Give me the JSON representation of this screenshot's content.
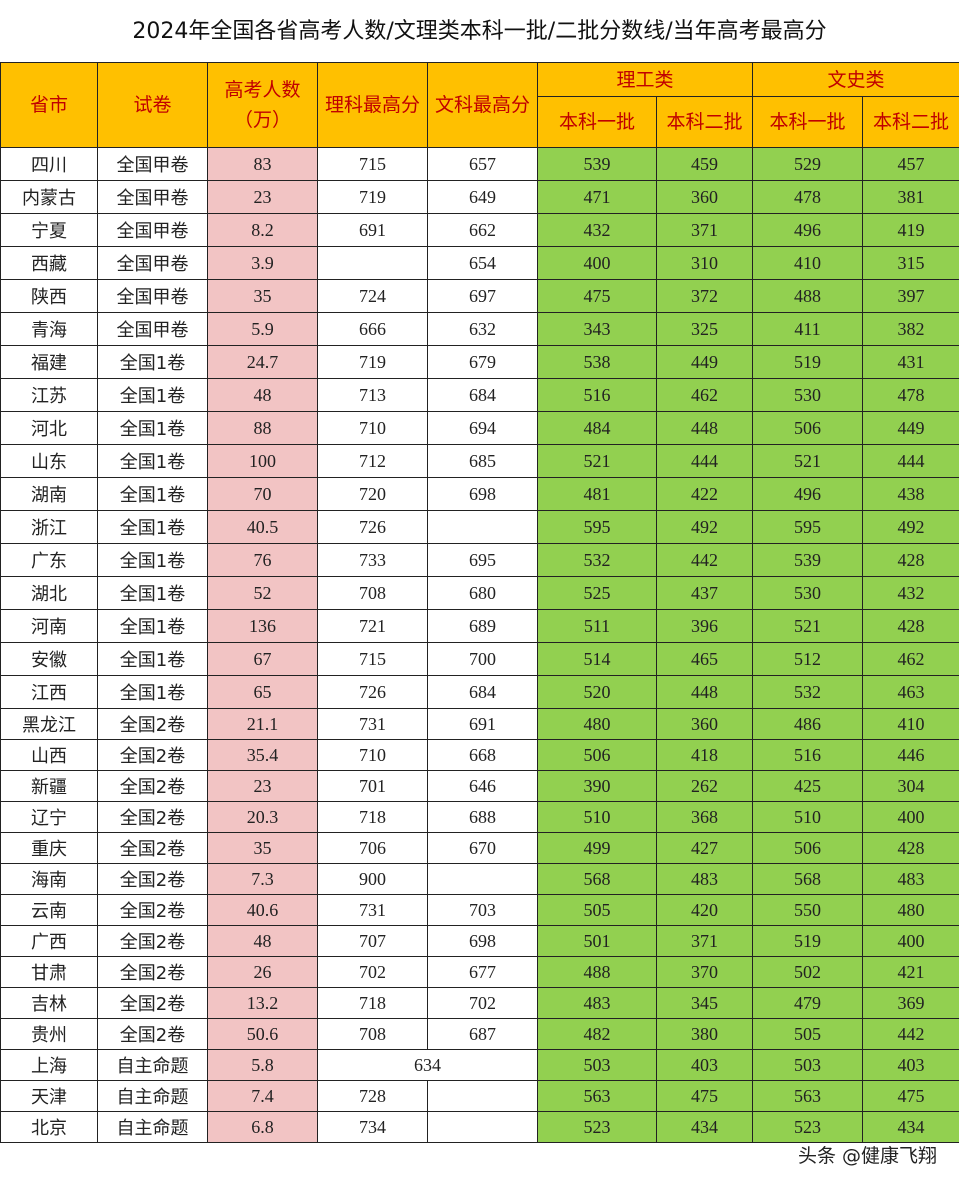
{
  "title": "2024年全国各省高考人数/文理类本科一批/二批分数线/当年高考最高分",
  "headers": {
    "province": "省市",
    "paper": "试卷",
    "population": "高考人数（万）",
    "sci_max": "理科最高分",
    "lib_max": "文科最高分",
    "science_group": "理工类",
    "liberal_group": "文史类",
    "tier1": "本科一批",
    "tier2": "本科二批"
  },
  "colors": {
    "header_bg": "#ffc000",
    "header_text": "#c00000",
    "population_bg": "#f2c4c4",
    "score_bg": "#92d050"
  },
  "rows": [
    {
      "province": "四川",
      "paper": "全国甲卷",
      "population": "83",
      "sci_max": "715",
      "lib_max": "657",
      "sci_t1": "539",
      "sci_t2": "459",
      "lib_t1": "529",
      "lib_t2": "457"
    },
    {
      "province": "内蒙古",
      "paper": "全国甲卷",
      "population": "23",
      "sci_max": "719",
      "lib_max": "649",
      "sci_t1": "471",
      "sci_t2": "360",
      "lib_t1": "478",
      "lib_t2": "381"
    },
    {
      "province": "宁夏",
      "paper": "全国甲卷",
      "population": "8.2",
      "sci_max": "691",
      "lib_max": "662",
      "sci_t1": "432",
      "sci_t2": "371",
      "lib_t1": "496",
      "lib_t2": "419"
    },
    {
      "province": "西藏",
      "paper": "全国甲卷",
      "population": "3.9",
      "sci_max": "",
      "lib_max": "654",
      "sci_t1": "400",
      "sci_t2": "310",
      "lib_t1": "410",
      "lib_t2": "315"
    },
    {
      "province": "陕西",
      "paper": "全国甲卷",
      "population": "35",
      "sci_max": "724",
      "lib_max": "697",
      "sci_t1": "475",
      "sci_t2": "372",
      "lib_t1": "488",
      "lib_t2": "397"
    },
    {
      "province": "青海",
      "paper": "全国甲卷",
      "population": "5.9",
      "sci_max": "666",
      "lib_max": "632",
      "sci_t1": "343",
      "sci_t2": "325",
      "lib_t1": "411",
      "lib_t2": "382"
    },
    {
      "province": "福建",
      "paper": "全国1卷",
      "population": "24.7",
      "sci_max": "719",
      "lib_max": "679",
      "sci_t1": "538",
      "sci_t2": "449",
      "lib_t1": "519",
      "lib_t2": "431"
    },
    {
      "province": "江苏",
      "paper": "全国1卷",
      "population": "48",
      "sci_max": "713",
      "lib_max": "684",
      "sci_t1": "516",
      "sci_t2": "462",
      "lib_t1": "530",
      "lib_t2": "478"
    },
    {
      "province": "河北",
      "paper": "全国1卷",
      "population": "88",
      "sci_max": "710",
      "lib_max": "694",
      "sci_t1": "484",
      "sci_t2": "448",
      "lib_t1": "506",
      "lib_t2": "449"
    },
    {
      "province": "山东",
      "paper": "全国1卷",
      "population": "100",
      "sci_max": "712",
      "lib_max": "685",
      "sci_t1": "521",
      "sci_t2": "444",
      "lib_t1": "521",
      "lib_t2": "444"
    },
    {
      "province": "湖南",
      "paper": "全国1卷",
      "population": "70",
      "sci_max": "720",
      "lib_max": "698",
      "sci_t1": "481",
      "sci_t2": "422",
      "lib_t1": "496",
      "lib_t2": "438"
    },
    {
      "province": "浙江",
      "paper": "全国1卷",
      "population": "40.5",
      "sci_max": "726",
      "lib_max": "",
      "sci_t1": "595",
      "sci_t2": "492",
      "lib_t1": "595",
      "lib_t2": "492"
    },
    {
      "province": "广东",
      "paper": "全国1卷",
      "population": "76",
      "sci_max": "733",
      "lib_max": "695",
      "sci_t1": "532",
      "sci_t2": "442",
      "lib_t1": "539",
      "lib_t2": "428"
    },
    {
      "province": "湖北",
      "paper": "全国1卷",
      "population": "52",
      "sci_max": "708",
      "lib_max": "680",
      "sci_t1": "525",
      "sci_t2": "437",
      "lib_t1": "530",
      "lib_t2": "432"
    },
    {
      "province": "河南",
      "paper": "全国1卷",
      "population": "136",
      "sci_max": "721",
      "lib_max": "689",
      "sci_t1": "511",
      "sci_t2": "396",
      "lib_t1": "521",
      "lib_t2": "428"
    },
    {
      "province": "安徽",
      "paper": "全国1卷",
      "population": "67",
      "sci_max": "715",
      "lib_max": "700",
      "sci_t1": "514",
      "sci_t2": "465",
      "lib_t1": "512",
      "lib_t2": "462"
    },
    {
      "province": "江西",
      "paper": "全国1卷",
      "population": "65",
      "sci_max": "726",
      "lib_max": "684",
      "sci_t1": "520",
      "sci_t2": "448",
      "lib_t1": "532",
      "lib_t2": "463"
    },
    {
      "province": "黑龙江",
      "paper": "全国2卷",
      "population": "21.1",
      "sci_max": "731",
      "lib_max": "691",
      "sci_t1": "480",
      "sci_t2": "360",
      "lib_t1": "486",
      "lib_t2": "410"
    },
    {
      "province": "山西",
      "paper": "全国2卷",
      "population": "35.4",
      "sci_max": "710",
      "lib_max": "668",
      "sci_t1": "506",
      "sci_t2": "418",
      "lib_t1": "516",
      "lib_t2": "446"
    },
    {
      "province": "新疆",
      "paper": "全国2卷",
      "population": "23",
      "sci_max": "701",
      "lib_max": "646",
      "sci_t1": "390",
      "sci_t2": "262",
      "lib_t1": "425",
      "lib_t2": "304"
    },
    {
      "province": "辽宁",
      "paper": "全国2卷",
      "population": "20.3",
      "sci_max": "718",
      "lib_max": "688",
      "sci_t1": "510",
      "sci_t2": "368",
      "lib_t1": "510",
      "lib_t2": "400"
    },
    {
      "province": "重庆",
      "paper": "全国2卷",
      "population": "35",
      "sci_max": "706",
      "lib_max": "670",
      "sci_t1": "499",
      "sci_t2": "427",
      "lib_t1": "506",
      "lib_t2": "428"
    },
    {
      "province": "海南",
      "paper": "全国2卷",
      "population": "7.3",
      "sci_max": "900",
      "lib_max": "",
      "sci_t1": "568",
      "sci_t2": "483",
      "lib_t1": "568",
      "lib_t2": "483"
    },
    {
      "province": "云南",
      "paper": "全国2卷",
      "population": "40.6",
      "sci_max": "731",
      "lib_max": "703",
      "sci_t1": "505",
      "sci_t2": "420",
      "lib_t1": "550",
      "lib_t2": "480"
    },
    {
      "province": "广西",
      "paper": "全国2卷",
      "population": "48",
      "sci_max": "707",
      "lib_max": "698",
      "sci_t1": "501",
      "sci_t2": "371",
      "lib_t1": "519",
      "lib_t2": "400"
    },
    {
      "province": "甘肃",
      "paper": "全国2卷",
      "population": "26",
      "sci_max": "702",
      "lib_max": "677",
      "sci_t1": "488",
      "sci_t2": "370",
      "lib_t1": "502",
      "lib_t2": "421"
    },
    {
      "province": "吉林",
      "paper": "全国2卷",
      "population": "13.2",
      "sci_max": "718",
      "lib_max": "702",
      "sci_t1": "483",
      "sci_t2": "345",
      "lib_t1": "479",
      "lib_t2": "369"
    },
    {
      "province": "贵州",
      "paper": "全国2卷",
      "population": "50.6",
      "sci_max": "708",
      "lib_max": "687",
      "sci_t1": "482",
      "sci_t2": "380",
      "lib_t1": "505",
      "lib_t2": "442"
    },
    {
      "province": "上海",
      "paper": "自主命题",
      "population": "5.8",
      "merged_max": "634",
      "sci_t1": "503",
      "sci_t2": "403",
      "lib_t1": "503",
      "lib_t2": "403"
    },
    {
      "province": "天津",
      "paper": "自主命题",
      "population": "7.4",
      "sci_max": "728",
      "lib_max": "",
      "sci_t1": "563",
      "sci_t2": "475",
      "lib_t1": "563",
      "lib_t2": "475"
    },
    {
      "province": "北京",
      "paper": "自主命题",
      "population": "6.8",
      "sci_max": "734",
      "lib_max": "",
      "sci_t1": "523",
      "sci_t2": "434",
      "lib_t1": "523",
      "lib_t2": "434"
    }
  ],
  "watermark": "头条 @健康飞翔"
}
